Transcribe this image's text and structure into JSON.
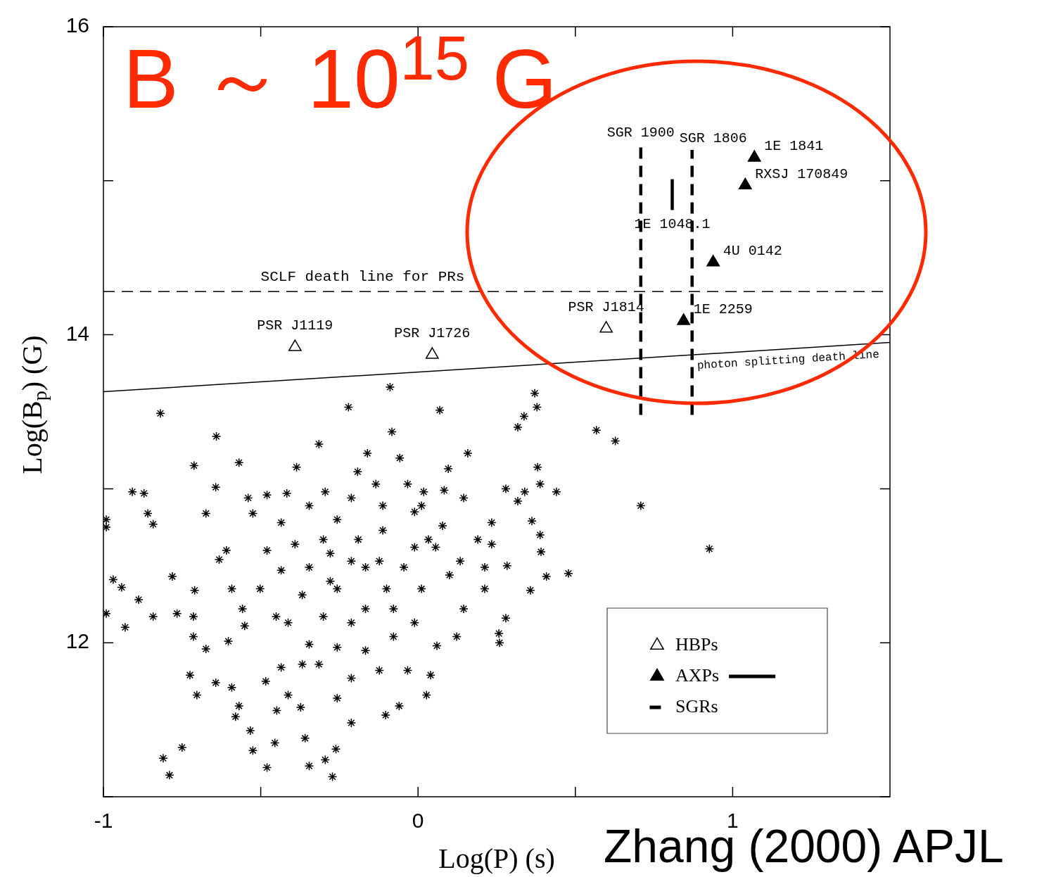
{
  "chart_data": {
    "type": "scatter",
    "xlabel": "Log(P) (s)",
    "ylabel": "Log(B$_{p}$) (G)",
    "xlim": [
      -1,
      1.5
    ],
    "xticks": [
      -1,
      {
        "value": -0.5,
        "label": null
      },
      0,
      {
        "value": 0.5,
        "label": null
      },
      1
    ],
    "ylim": [
      11,
      16
    ],
    "yticks": [
      {
        "value": 11,
        "label": null
      },
      12,
      {
        "value": 13,
        "label": null
      },
      14,
      {
        "value": 15,
        "label": null
      },
      16
    ],
    "grid": false,
    "legend": "bottom right",
    "series": [
      {
        "marker": "cross",
        "color": "#000000",
        "x": [
          -0.819,
          -0.089,
          -0.221,
          0.069,
          0.371,
          0.378,
          0.337,
          0.317,
          0.567,
          0.627,
          -0.641,
          -0.083,
          -0.315,
          0.158,
          -0.161,
          -0.712,
          -0.569,
          -0.058,
          0.38,
          0.708,
          0.926,
          -0.908,
          -0.871,
          -0.859,
          -0.842,
          -0.991,
          -0.991,
          -0.969,
          -0.942,
          -0.991,
          -0.931,
          -0.888,
          -0.842,
          -0.781,
          -0.766,
          -0.643,
          -0.674,
          -0.81,
          -0.79,
          -0.75,
          -0.48,
          -0.272,
          -0.346,
          -0.295,
          -0.261,
          -0.455,
          -0.359,
          -0.533,
          -0.58,
          -0.449,
          -0.373,
          -0.103,
          -0.06,
          0.027,
          0.04,
          0.06,
          0.259,
          0.257,
          0.279,
          0.357,
          0.408,
          0.478,
          0.391,
          0.388,
          0.362,
          0.44,
          0.388,
          0.279,
          0.317,
          0.339,
          0.096,
          0.083,
          0.018,
          -0.033,
          -0.134,
          -0.192,
          -0.295,
          -0.386,
          -0.417,
          -0.48,
          -0.54,
          -0.609,
          -0.632,
          -0.71,
          -0.714,
          -0.714,
          -0.725,
          -0.703,
          -0.674,
          -0.643,
          -0.592,
          -0.569,
          -0.484,
          -0.551,
          -0.558,
          -0.502,
          -0.435,
          -0.451,
          -0.413,
          -0.368,
          -0.346,
          -0.279,
          -0.257,
          -0.301,
          -0.346,
          -0.315,
          -0.368,
          -0.435,
          -0.257,
          -0.212,
          -0.212,
          -0.167,
          -0.19,
          -0.167,
          -0.123,
          -0.1,
          -0.078,
          -0.045,
          -0.011,
          0.011,
          0.056,
          0.078,
          0.1,
          0.134,
          0.145,
          0.19,
          0.212,
          0.234,
          0.212,
          0.123,
          -0.011,
          -0.078,
          -0.123,
          -0.033,
          -0.257,
          -0.212,
          -0.525,
          -0.413,
          -0.603,
          -0.592,
          -0.525,
          -0.435,
          -0.346,
          -0.257,
          -0.212,
          -0.112,
          -0.011,
          0.011,
          -0.301,
          -0.391,
          -0.48,
          -0.212,
          -0.167,
          0.033,
          0.145,
          0.234,
          0.283,
          -0.112,
          -0.279
        ],
        "values": [
          13.49,
          13.66,
          13.53,
          13.51,
          13.62,
          13.53,
          13.47,
          13.4,
          13.38,
          13.31,
          13.34,
          13.37,
          13.29,
          13.23,
          13.23,
          13.15,
          13.17,
          13.2,
          13.14,
          12.89,
          12.61,
          12.98,
          12.97,
          12.84,
          12.77,
          12.8,
          12.75,
          12.41,
          12.36,
          12.19,
          12.1,
          12.28,
          12.17,
          12.43,
          12.19,
          13.01,
          12.84,
          11.25,
          11.14,
          11.32,
          11.19,
          11.13,
          11.2,
          11.24,
          11.31,
          11.35,
          11.38,
          11.43,
          11.52,
          11.56,
          11.58,
          11.53,
          11.59,
          11.66,
          11.79,
          11.98,
          12,
          12.06,
          12.16,
          12.34,
          12.43,
          12.45,
          12.59,
          12.7,
          12.79,
          12.98,
          13.03,
          13,
          12.92,
          12.98,
          13.13,
          12.99,
          12.98,
          13.03,
          13.03,
          13.11,
          12.98,
          13.14,
          12.97,
          12.96,
          12.94,
          12.6,
          12.54,
          12.34,
          12.17,
          12.04,
          11.79,
          11.66,
          11.96,
          11.74,
          11.71,
          11.59,
          11.75,
          12.11,
          12.22,
          12.35,
          12.47,
          12.17,
          12.13,
          12.31,
          12.49,
          12.58,
          12.35,
          12.17,
          11.99,
          11.86,
          11.86,
          11.84,
          11.97,
          12.13,
          11.77,
          11.95,
          12.67,
          12.49,
          12.53,
          12.35,
          12.22,
          12.49,
          12.62,
          12.35,
          12.62,
          12.76,
          12.44,
          12.53,
          12.22,
          12.67,
          12.49,
          12.78,
          12.35,
          12.04,
          12.13,
          12.04,
          11.82,
          11.82,
          11.64,
          11.48,
          11.3,
          11.66,
          12.01,
          12.35,
          12.84,
          12.78,
          12.89,
          12.8,
          12.94,
          12.89,
          12.85,
          12.89,
          12.67,
          12.64,
          12.6,
          12.53,
          12.22,
          12.67,
          12.94,
          12.64,
          12.5,
          12.73,
          12.4
        ]
      },
      {
        "name": "HBPs",
        "marker": "triangle",
        "color": "#000000",
        "x": [
          -0.391,
          0.045,
          0.598
        ],
        "values": [
          13.92,
          13.87,
          14.04
        ]
      },
      {
        "name": "AXPs",
        "marker": "triangle",
        "color": "#000000",
        "x": [
          1.069,
          1.04,
          0.938,
          0.844
        ],
        "values": [
          15.15,
          14.97,
          14.47,
          14.09
        ]
      },
      {
        "type": "line",
        "line_style": "solid",
        "color": "#000000",
        "x": [
          0.808,
          0.808
        ],
        "values": [
          14.81,
          15.01
        ]
      },
      {
        "type": "line",
        "name": "SGRs",
        "line_style": "dashed",
        "color": "#000000",
        "x": [
          0.708,
          0.708
        ],
        "values": [
          13.48,
          15.24
        ]
      },
      {
        "type": "line",
        "line_style": "dashed",
        "color": "#000000",
        "x": [
          0.871,
          0.871
        ],
        "values": [
          13.48,
          15.2
        ]
      },
      {
        "type": "line",
        "line_style": "solid",
        "color": "#000000",
        "x": [
          -1,
          1.5
        ],
        "values": [
          13.63,
          13.95
        ]
      }
    ],
    "ref_lines": [
      {
        "axis": "y",
        "value": 14.28,
        "label": "SCLF death line for PRs",
        "color": "#000000",
        "line_style": "dashed"
      }
    ],
    "annotations": [
      "B ～ 10$^{15}$ G",
      "Zhang (2000) APJL",
      {
        "text": "SGR 1900",
        "x": 0.708,
        "y": 15.24
      },
      {
        "text": "SGR 1806",
        "x": 0.871,
        "y": 15.2
      },
      {
        "text": "1E 1841",
        "x": 1.069,
        "y": 15.15
      },
      {
        "text": "RXSJ 170849",
        "x": 1.04,
        "y": 14.97
      },
      {
        "text": "1E 1048.1",
        "x": 0.808,
        "y": 14.81
      },
      {
        "text": "4U 0142",
        "x": 0.938,
        "y": 14.47
      },
      {
        "text": "1E 2259",
        "x": 0.844,
        "y": 14.09
      },
      {
        "text": "PSR J1119",
        "x": -0.391,
        "y": 13.92
      },
      {
        "text": "PSR J1726",
        "x": 0.045,
        "y": 13.87
      },
      {
        "text": "PSR J1814",
        "x": 0.598,
        "y": 14.04
      },
      {
        "text": "photon splitting death line",
        "x": 0.885,
        "y": 13.871
      }
    ]
  }
}
